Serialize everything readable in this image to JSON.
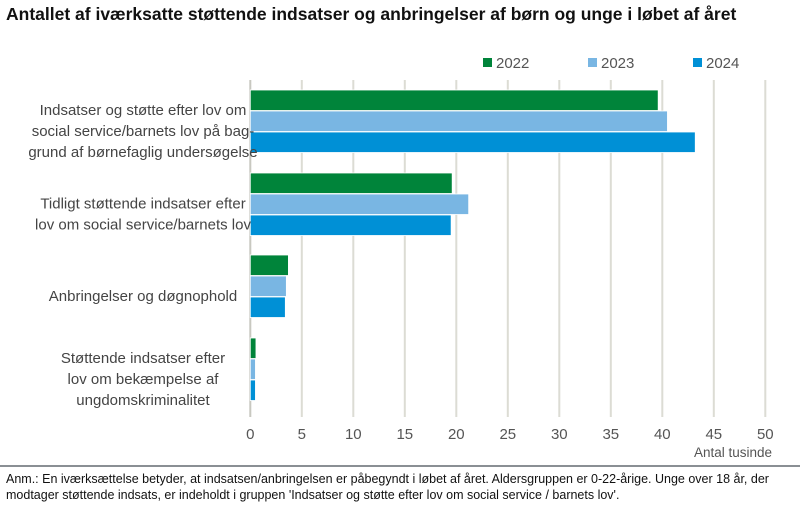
{
  "chart_data": {
    "type": "bar",
    "orientation": "horizontal",
    "title": "Antallet af iværksatte støttende indsatser og anbringelser af børn og unge i løbet af året",
    "categories": [
      [
        "Indsatser og støtte efter lov om",
        "social service/barnets lov på bag-",
        "grund af børnefaglig undersøgelse"
      ],
      [
        "Tidligt støttende indsatser efter",
        "lov om social service/barnets lov"
      ],
      [
        "Anbringelser og døgnophold"
      ],
      [
        "Støttende indsatser efter",
        "lov om bekæmpelse af",
        "ungdomskriminalitet"
      ]
    ],
    "series": [
      {
        "name": "2022",
        "color": "#00843a",
        "values": [
          39.6,
          19.6,
          3.7,
          0.55
        ]
      },
      {
        "name": "2023",
        "color": "#79b6e3",
        "values": [
          40.5,
          21.2,
          3.5,
          0.5
        ]
      },
      {
        "name": "2024",
        "color": "#0090d6",
        "values": [
          43.2,
          19.5,
          3.4,
          0.5
        ]
      }
    ],
    "xlabel": "Antal tusinde",
    "xlim": [
      0,
      50
    ],
    "xticks": [
      "0",
      "5",
      "10",
      "15",
      "20",
      "25",
      "30",
      "35",
      "40",
      "45",
      "50"
    ],
    "grid": true,
    "legend": "top-right"
  },
  "note": "Anm.: En iværksættelse betyder, at indsatsen/anbringelsen er påbegyndt i løbet af året. Aldersgruppen er 0-22-årige. Unge over 18 år, der modtager støttende indsats, er indeholdt i gruppen 'Indsatser og støtte efter lov om social service / barnets lov'."
}
